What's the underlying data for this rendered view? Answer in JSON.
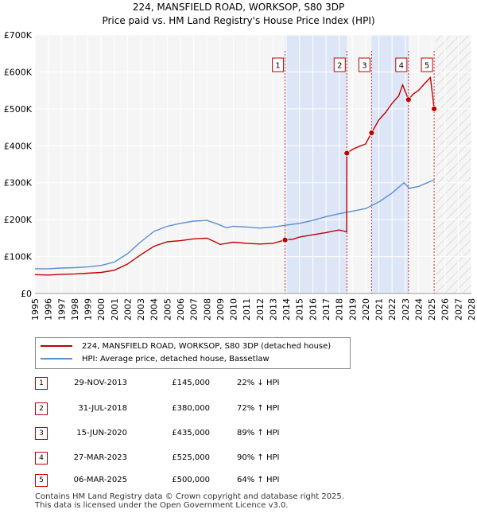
{
  "chart_data": {
    "type": "line",
    "title": "224, MANSFIELD ROAD, WORKSOP, S80 3DP",
    "subtitle": "Price paid vs. HM Land Registry's House Price Index (HPI)",
    "xlim": [
      1995,
      2028
    ],
    "ylim": [
      0,
      700000
    ],
    "x_ticks": [
      "1995",
      "1996",
      "1997",
      "1998",
      "1999",
      "2000",
      "2001",
      "2002",
      "2003",
      "2004",
      "2005",
      "2006",
      "2007",
      "2008",
      "2009",
      "2010",
      "2011",
      "2012",
      "2013",
      "2014",
      "2015",
      "2016",
      "2017",
      "2018",
      "2019",
      "2020",
      "2021",
      "2022",
      "2023",
      "2024",
      "2025",
      "2026",
      "2027",
      "2028"
    ],
    "y_ticks": [
      {
        "value": 0,
        "label": "£0"
      },
      {
        "value": 100000,
        "label": "£100K"
      },
      {
        "value": 200000,
        "label": "£200K"
      },
      {
        "value": 300000,
        "label": "£300K"
      },
      {
        "value": 400000,
        "label": "£400K"
      },
      {
        "value": 500000,
        "label": "£500K"
      },
      {
        "value": 600000,
        "label": "£600K"
      },
      {
        "value": 700000,
        "label": "£700K"
      }
    ],
    "forecast_start": 2025.3,
    "series": [
      {
        "name": "224, MANSFIELD ROAD, WORKSOP, S80 3DP (detached house)",
        "color": "#c00000",
        "points": [
          [
            1995,
            51000
          ],
          [
            1996,
            50000
          ],
          [
            1997,
            52000
          ],
          [
            1998,
            53000
          ],
          [
            1999,
            55000
          ],
          [
            2000,
            57000
          ],
          [
            2001,
            63000
          ],
          [
            2002,
            80000
          ],
          [
            2003,
            105000
          ],
          [
            2004,
            128000
          ],
          [
            2005,
            140000
          ],
          [
            2006,
            143000
          ],
          [
            2007,
            148000
          ],
          [
            2008,
            150000
          ],
          [
            2008.6,
            140000
          ],
          [
            2009,
            133000
          ],
          [
            2010,
            139000
          ],
          [
            2011,
            136000
          ],
          [
            2012,
            134000
          ],
          [
            2013,
            136000
          ],
          [
            2013.91,
            145000
          ],
          [
            2014.5,
            147000
          ],
          [
            2015,
            153000
          ],
          [
            2016,
            159000
          ],
          [
            2017,
            165000
          ],
          [
            2018,
            172000
          ],
          [
            2018.57,
            167000
          ],
          [
            2018.58,
            380000
          ],
          [
            2019,
            390000
          ],
          [
            2019.5,
            398000
          ],
          [
            2020,
            405000
          ],
          [
            2020.45,
            435000
          ],
          [
            2021,
            470000
          ],
          [
            2021.5,
            490000
          ],
          [
            2022,
            515000
          ],
          [
            2022.5,
            535000
          ],
          [
            2022.8,
            565000
          ],
          [
            2023.24,
            525000
          ],
          [
            2023.6,
            540000
          ],
          [
            2024,
            550000
          ],
          [
            2024.5,
            570000
          ],
          [
            2024.9,
            585000
          ],
          [
            2025.18,
            500000
          ]
        ]
      },
      {
        "name": "HPI: Average price, detached house, Bassetlaw",
        "color": "#5a8fd0",
        "points": [
          [
            1995,
            67000
          ],
          [
            1996,
            67000
          ],
          [
            1997,
            69000
          ],
          [
            1998,
            70000
          ],
          [
            1999,
            72000
          ],
          [
            2000,
            76000
          ],
          [
            2001,
            85000
          ],
          [
            2002,
            108000
          ],
          [
            2003,
            140000
          ],
          [
            2004,
            168000
          ],
          [
            2005,
            182000
          ],
          [
            2006,
            190000
          ],
          [
            2007,
            196000
          ],
          [
            2008,
            198000
          ],
          [
            2008.8,
            188000
          ],
          [
            2009.5,
            178000
          ],
          [
            2010,
            182000
          ],
          [
            2011,
            180000
          ],
          [
            2012,
            177000
          ],
          [
            2013,
            180000
          ],
          [
            2014,
            185000
          ],
          [
            2015,
            190000
          ],
          [
            2016,
            198000
          ],
          [
            2017,
            208000
          ],
          [
            2018,
            216000
          ],
          [
            2019,
            223000
          ],
          [
            2020,
            230000
          ],
          [
            2021,
            248000
          ],
          [
            2022,
            272000
          ],
          [
            2022.9,
            300000
          ],
          [
            2023.3,
            285000
          ],
          [
            2024,
            290000
          ],
          [
            2025,
            305000
          ],
          [
            2025.2,
            308000
          ]
        ]
      }
    ],
    "sales": [
      {
        "num": "1",
        "x": 2013.91,
        "price": 145000
      },
      {
        "num": "2",
        "x": 2018.58,
        "price": 380000
      },
      {
        "num": "3",
        "x": 2020.45,
        "price": 435000
      },
      {
        "num": "4",
        "x": 2023.24,
        "price": 525000
      },
      {
        "num": "5",
        "x": 2025.18,
        "price": 500000
      }
    ],
    "bands": [
      [
        2013.91,
        2018.58
      ],
      [
        2020.45,
        2023.24
      ]
    ]
  },
  "legend": {
    "property": "224, MANSFIELD ROAD, WORKSOP, S80 3DP (detached house)",
    "hpi": "HPI: Average price, detached house, Bassetlaw"
  },
  "sales_table": [
    {
      "num": "1",
      "date": "29-NOV-2013",
      "price": "£145,000",
      "hpi": "22% ↓ HPI"
    },
    {
      "num": "2",
      "date": "31-JUL-2018",
      "price": "£380,000",
      "hpi": "72% ↑ HPI"
    },
    {
      "num": "3",
      "date": "15-JUN-2020",
      "price": "£435,000",
      "hpi": "89% ↑ HPI"
    },
    {
      "num": "4",
      "date": "27-MAR-2023",
      "price": "£525,000",
      "hpi": "90% ↑ HPI"
    },
    {
      "num": "5",
      "date": "06-MAR-2025",
      "price": "£500,000",
      "hpi": "64% ↑ HPI"
    }
  ],
  "footer": {
    "line1": "Contains HM Land Registry data © Crown copyright and database right 2025.",
    "line2": "This data is licensed under the Open Government Licence v3.0."
  }
}
